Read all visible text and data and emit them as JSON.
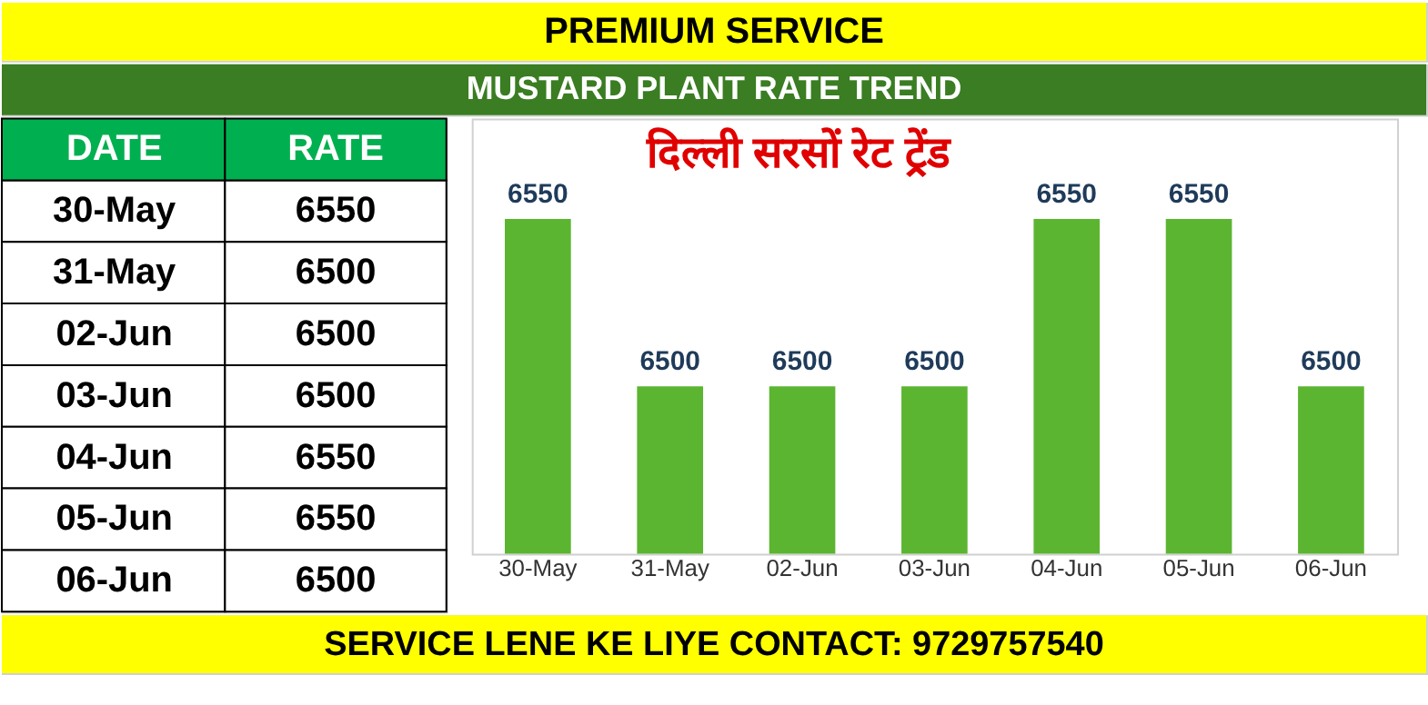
{
  "chart_data": [
    {
      "type": "other",
      "annotations": [
        "DATE",
        "RATE"
      ],
      "categories": [
        "30-May",
        "31-May",
        "02-Jun",
        "03-Jun",
        "04-Jun",
        "05-Jun",
        "06-Jun"
      ],
      "values": [
        6550,
        6500,
        6500,
        6500,
        6550,
        6550,
        6500
      ],
      "data_labels": true
    },
    {
      "type": "bar",
      "title": "PREMIUM SERVICE",
      "subtitle": "MUSTARD PLANT RATE TREND",
      "annotations": [
        "दिल्ली सरसों रेट ट्रेंड",
        "SERVICE LENE KE LIYE CONTACT: 9729757540"
      ],
      "categories": [
        "30-May",
        "31-May",
        "02-Jun",
        "03-Jun",
        "04-Jun",
        "05-Jun",
        "06-Jun"
      ],
      "values": [
        6550,
        6500,
        6500,
        6500,
        6550,
        6550,
        6500
      ],
      "color": "#5cb531",
      "ylim": [
        6450,
        6580
      ],
      "tick_labels": "x",
      "data_labels": true,
      "grid": false
    }
  ]
}
